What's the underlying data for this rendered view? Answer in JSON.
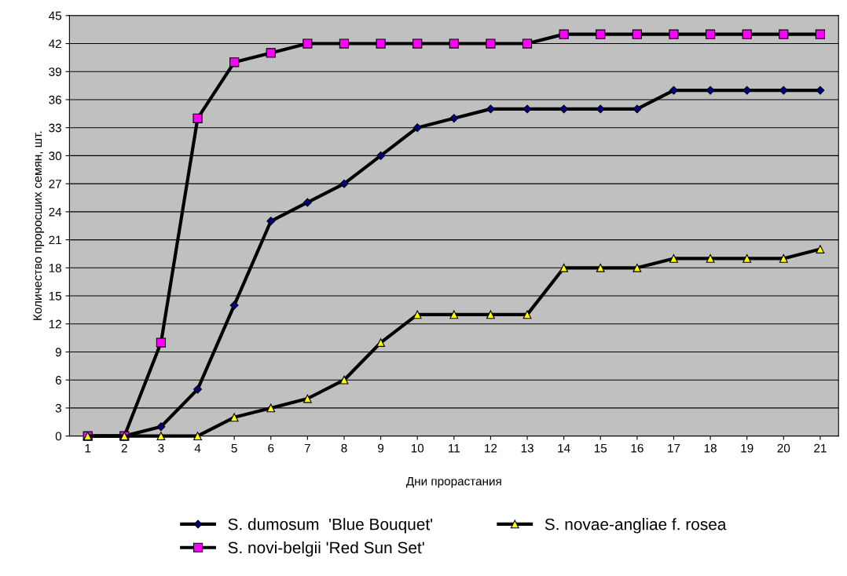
{
  "chart_data": {
    "type": "line",
    "xlabel": "Дни прорастания",
    "ylabel": "Количество проросших семян, шт.",
    "categories": [
      "1",
      "2",
      "3",
      "4",
      "5",
      "6",
      "7",
      "8",
      "9",
      "10",
      "11",
      "12",
      "13",
      "14",
      "15",
      "16",
      "17",
      "18",
      "19",
      "20",
      "21"
    ],
    "series": [
      {
        "name": "S. dumosum  'Blue Bouquet'",
        "color": "#000080",
        "marker": "diamond",
        "values": [
          0,
          0,
          1,
          5,
          14,
          23,
          25,
          27,
          30,
          33,
          34,
          35,
          35,
          35,
          35,
          35,
          37,
          37,
          37,
          37,
          37
        ]
      },
      {
        "name": "S. novi-belgii 'Red Sun Set'",
        "color": "#ff00ff",
        "marker": "square",
        "values": [
          0,
          0,
          10,
          34,
          40,
          41,
          42,
          42,
          42,
          42,
          42,
          42,
          42,
          43,
          43,
          43,
          43,
          43,
          43,
          43,
          43
        ]
      },
      {
        "name": "S. novae-angliae f. rosea",
        "color": "#ffff00",
        "marker": "triangle",
        "values": [
          0,
          0,
          0,
          0,
          2,
          3,
          4,
          6,
          10,
          13,
          13,
          13,
          13,
          18,
          18,
          18,
          19,
          19,
          19,
          19,
          20
        ]
      }
    ],
    "ylim": [
      0,
      45
    ],
    "yticks": [
      0,
      3,
      6,
      9,
      12,
      15,
      18,
      21,
      24,
      27,
      30,
      33,
      36,
      39,
      42,
      45
    ],
    "grid": "y",
    "legend": "bottom",
    "line_style": "solid"
  }
}
